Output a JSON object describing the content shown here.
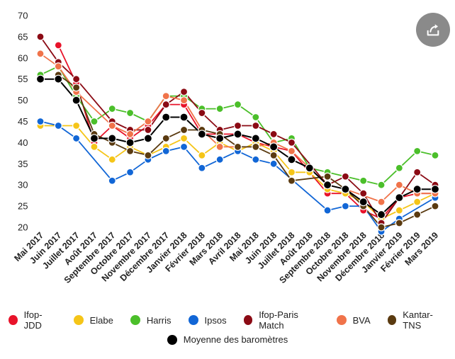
{
  "chart_data": {
    "type": "line",
    "title": "",
    "xlabel": "",
    "ylabel": "",
    "ylim": [
      20,
      70
    ],
    "yticks": [
      20,
      25,
      30,
      35,
      40,
      45,
      50,
      55,
      60,
      65,
      70
    ],
    "grid": false,
    "legend_position": "bottom",
    "categories": [
      "Mai 2017",
      "Juin 2017",
      "Juillet 2017",
      "Août 2017",
      "Septembre 2017",
      "Octobre 2017",
      "Novembre 2017",
      "Décembre 2017",
      "Janvier 2018",
      "Février 2018",
      "Mars 2018",
      "Avril 2018",
      "Mai 2018",
      "Juin 2018",
      "Juillet 2018",
      "Août 2018",
      "Septembre 2018",
      "Octobre 2018",
      "Novembre 2018",
      "Décembre 2018",
      "Janvier 2019",
      "Février 2019",
      "Mars 2019"
    ],
    "series": [
      {
        "name": "Ifop-JDD",
        "color": "#e8132a",
        "values": [
          null,
          63,
          54,
          40,
          44,
          41,
          44,
          49,
          49,
          42,
          42,
          42,
          40,
          39,
          38,
          33,
          28,
          28,
          24,
          22,
          27,
          28,
          28
        ]
      },
      {
        "name": "Elabe",
        "color": "#f5c518",
        "values": [
          44,
          44,
          44,
          39,
          36,
          39,
          37,
          39,
          41,
          37,
          40,
          38,
          40,
          38,
          33,
          33,
          29,
          28,
          26,
          22,
          24,
          26,
          28
        ]
      },
      {
        "name": "Harris",
        "color": "#4bbf2a",
        "values": [
          56,
          58,
          51,
          45,
          48,
          47,
          45,
          51,
          51,
          48,
          48,
          49,
          46,
          40,
          41,
          34,
          33,
          32,
          31,
          30,
          34,
          38,
          37
        ]
      },
      {
        "name": "Ipsos",
        "color": "#1166d6",
        "values": [
          45,
          44,
          41,
          null,
          31,
          33,
          36,
          38,
          39,
          34,
          36,
          38,
          36,
          35,
          null,
          null,
          24,
          25,
          25,
          19,
          22,
          null,
          27
        ]
      },
      {
        "name": "Ifop-Paris Match",
        "color": "#8b0a14",
        "values": [
          65,
          59,
          55,
          null,
          45,
          43,
          43,
          49,
          52,
          47,
          43,
          44,
          44,
          42,
          40,
          null,
          30,
          32,
          28,
          21,
          27,
          33,
          30
        ]
      },
      {
        "name": "BVA",
        "color": "#f0734a",
        "values": [
          61,
          58,
          52,
          null,
          44,
          42,
          45,
          51,
          50,
          43,
          39,
          null,
          39,
          40,
          38,
          34,
          30,
          29,
          null,
          26,
          30,
          28,
          28
        ]
      },
      {
        "name": "Kantar-TNS",
        "color": "#5a3a10",
        "values": [
          null,
          56,
          53,
          42,
          40,
          38,
          37,
          41,
          43,
          43,
          42,
          39,
          39,
          37,
          31,
          null,
          32,
          29,
          25,
          20,
          21,
          23,
          25
        ]
      },
      {
        "name": "Moyenne des baromètres",
        "color": "#000000",
        "values": [
          55,
          55,
          50,
          41,
          41,
          40,
          41,
          46,
          46,
          42,
          41,
          42,
          41,
          39,
          36,
          34,
          30,
          29,
          26,
          23,
          27,
          29,
          29
        ]
      }
    ]
  },
  "share_icon": "share-icon"
}
